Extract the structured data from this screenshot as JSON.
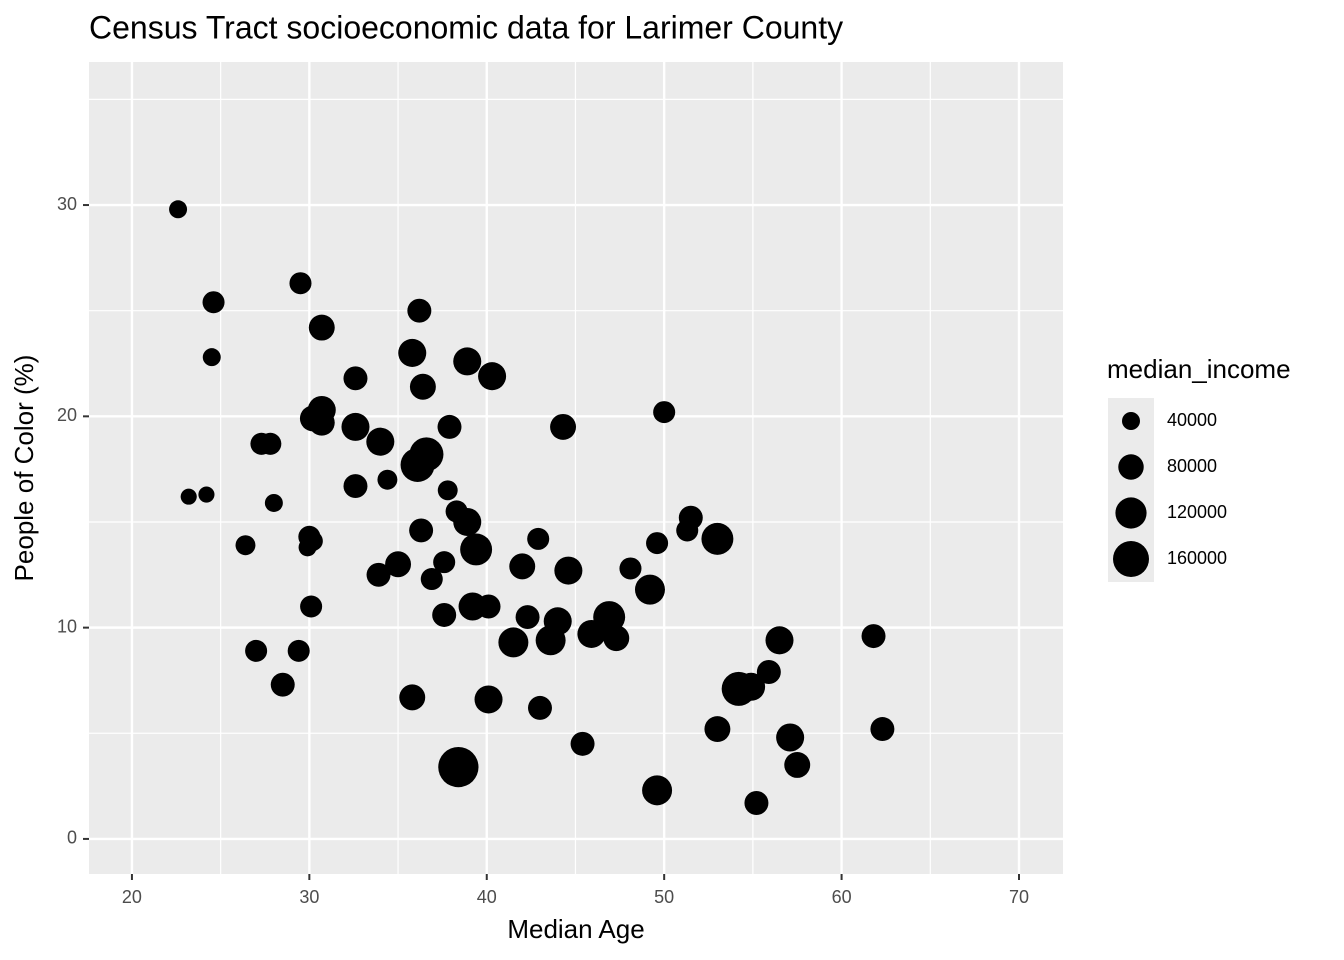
{
  "chart_data": {
    "type": "scatter",
    "title": "Census Tract socioeconomic data for Larimer County",
    "x_label": "Median Age",
    "y_label": "People of Color (%)",
    "size_label": "median_income",
    "color": "#000000",
    "panel_color": "#ebebeb",
    "grid": true,
    "xlim": [
      17.58,
      72.48
    ],
    "ylim": [
      -1.66,
      36.77
    ],
    "xticks": [
      20,
      30,
      40,
      50,
      60,
      70
    ],
    "yticks": [
      0,
      10,
      20,
      30
    ],
    "size_breaks": [
      40000,
      80000,
      120000,
      160000
    ],
    "x": [
      22.6,
      29.5,
      24.6,
      24.5,
      30.7,
      36.2,
      35.8,
      38.9,
      32.6,
      36.4,
      40.3,
      30.7,
      30.2,
      30.7,
      32.6,
      34.0,
      37.9,
      44.3,
      50.0,
      27.3,
      27.8,
      36.6,
      36.1,
      34.4,
      32.6,
      23.2,
      24.2,
      28.0,
      37.8,
      38.3,
      38.9,
      36.3,
      30.0,
      30.2,
      29.9,
      26.4,
      39.4,
      42.9,
      49.6,
      51.5,
      51.3,
      53.0,
      35.0,
      33.9,
      37.6,
      36.9,
      42.0,
      44.6,
      48.1,
      49.2,
      30.1,
      37.6,
      39.2,
      40.1,
      42.3,
      44.0,
      46.9,
      41.5,
      43.6,
      45.9,
      47.3,
      56.5,
      61.8,
      27.0,
      29.4,
      28.5,
      55.9,
      54.9,
      54.2,
      35.8,
      40.1,
      43.0,
      53.0,
      62.3,
      57.1,
      45.4,
      57.5,
      38.4,
      49.6,
      55.2
    ],
    "values": [
      29.8,
      26.3,
      25.4,
      22.8,
      24.2,
      25.0,
      23.0,
      22.6,
      21.8,
      21.4,
      21.9,
      20.3,
      19.9,
      19.7,
      19.5,
      18.8,
      19.5,
      19.5,
      20.2,
      18.7,
      18.7,
      18.2,
      17.7,
      17.0,
      16.7,
      16.2,
      16.3,
      15.9,
      16.5,
      15.5,
      15.0,
      14.6,
      14.3,
      14.1,
      13.8,
      13.9,
      13.7,
      14.2,
      14.0,
      15.2,
      14.6,
      14.2,
      13.0,
      12.5,
      13.1,
      12.3,
      12.9,
      12.7,
      12.8,
      11.8,
      11.0,
      10.6,
      11.0,
      11.0,
      10.5,
      10.3,
      10.5,
      9.3,
      9.4,
      9.7,
      9.5,
      9.4,
      9.6,
      8.9,
      8.9,
      7.3,
      7.9,
      7.2,
      7.1,
      6.7,
      6.6,
      6.2,
      5.2,
      5.2,
      4.8,
      4.5,
      3.5,
      3.4,
      2.3,
      1.7
    ],
    "sizes": [
      40000,
      60000,
      60000,
      40000,
      83000,
      71000,
      97000,
      97000,
      71000,
      83000,
      97000,
      97000,
      83000,
      83000,
      97000,
      97000,
      71000,
      83000,
      60000,
      60000,
      60000,
      143000,
      143000,
      49000,
      71000,
      32000,
      32000,
      40000,
      49000,
      60000,
      97000,
      71000,
      60000,
      49000,
      40000,
      49000,
      126000,
      60000,
      60000,
      71000,
      60000,
      126000,
      83000,
      71000,
      60000,
      60000,
      83000,
      97000,
      60000,
      111000,
      60000,
      71000,
      97000,
      71000,
      71000,
      97000,
      126000,
      111000,
      111000,
      97000,
      83000,
      97000,
      71000,
      60000,
      60000,
      71000,
      71000,
      97000,
      143000,
      83000,
      97000,
      71000,
      83000,
      71000,
      97000,
      71000,
      83000,
      200000,
      111000,
      71000
    ]
  }
}
